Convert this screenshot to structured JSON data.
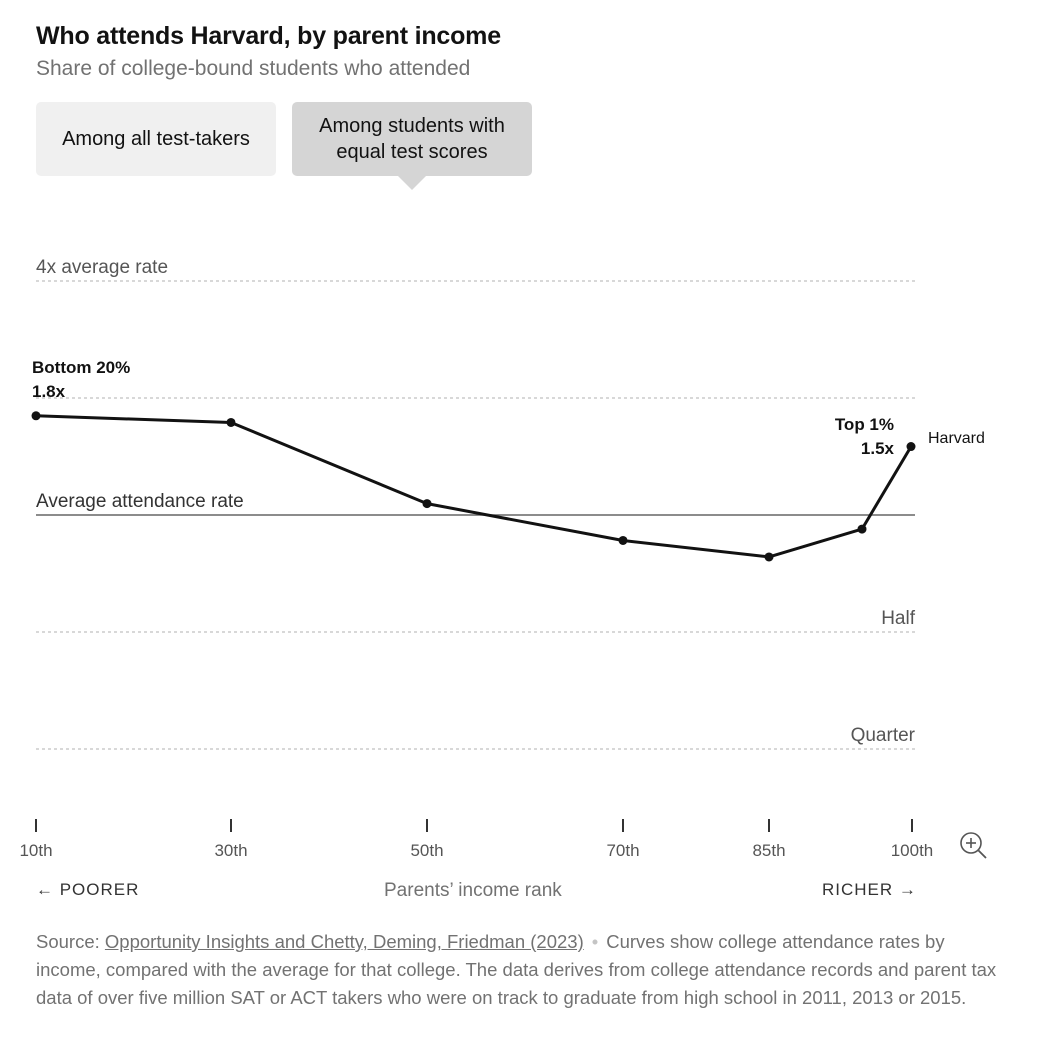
{
  "header": {
    "title": "Who attends Harvard, by parent income",
    "subtitle": "Share of college-bound students who attended"
  },
  "toggles": [
    {
      "label": "Among all test-takers",
      "selected": false
    },
    {
      "label": "Among students with\nequal test scores",
      "selected": true
    }
  ],
  "chart_data": {
    "type": "line",
    "xlabel": "Parents’ income rank",
    "x_ticks": [
      "10th",
      "30th",
      "50th",
      "70th",
      "85th",
      "100th"
    ],
    "y_scale": "log",
    "y_reference_lines": [
      {
        "label": "4x average rate",
        "value": 4,
        "style": "dotted"
      },
      {
        "value": 2,
        "style": "dotted"
      },
      {
        "label": "Average attendance rate",
        "value": 1,
        "style": "solid"
      },
      {
        "label": "Half",
        "value": 0.5,
        "style": "dotted"
      },
      {
        "label": "Quarter",
        "value": 0.25,
        "style": "dotted"
      }
    ],
    "series": [
      {
        "name": "Harvard",
        "points": [
          {
            "x": "10th",
            "y": 1.8
          },
          {
            "x": "30th",
            "y": 1.73
          },
          {
            "x": "50th",
            "y": 1.07
          },
          {
            "x": "70th",
            "y": 0.86
          },
          {
            "x": "85th",
            "y": 0.78
          },
          {
            "x": "95th",
            "y": 0.92
          },
          {
            "x": "100th",
            "y": 1.5
          }
        ]
      }
    ],
    "annotations": [
      {
        "label": "Bottom 20%",
        "value": "1.8x"
      },
      {
        "label": "Top 1%",
        "value": "1.5x"
      }
    ],
    "axis_direction_labels": {
      "left": "← POORER",
      "right": "RICHER →"
    }
  },
  "source": {
    "prefix": "Source: ",
    "link_text": "Opportunity Insights and Chetty, Deming, Friedman (2023)",
    "separator": "•",
    "note": "Curves show college attendance rates by income, compared with the average for that college. The data derives from college attendance records and parent tax data of over five million SAT or ACT takers who were on track to graduate from high school in 2011, 2013 or 2015."
  },
  "colors": {
    "line": "#121212",
    "gridline": "#cccccc",
    "average_line": "#666666",
    "muted_text": "#727272"
  },
  "icons": {
    "zoom": "zoom-in-icon"
  }
}
